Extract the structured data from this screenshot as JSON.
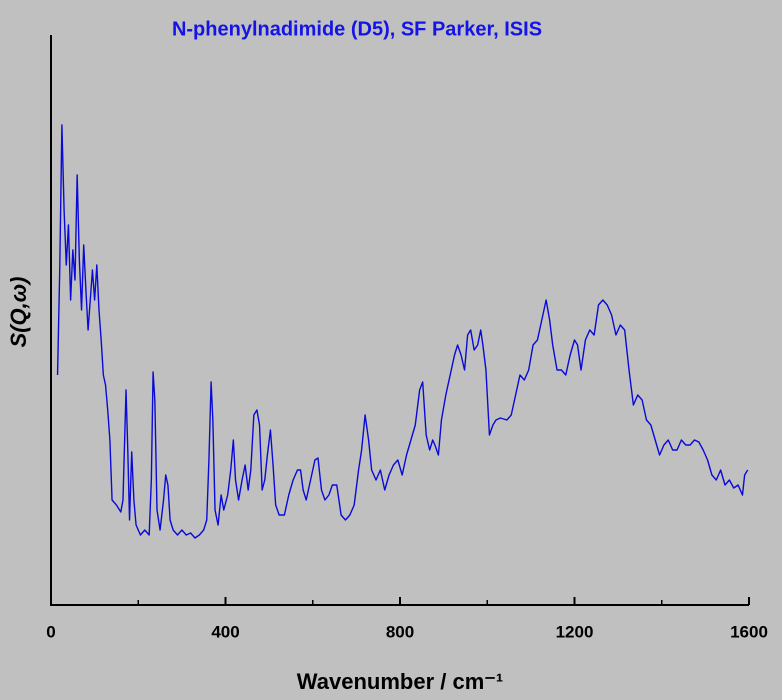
{
  "chart_data": {
    "type": "line",
    "title": "N-phenylnadimide (D5), SF Parker, ISIS",
    "x_label": "Wavenumber / cm⁻¹",
    "y_label": "S(Q,ω)",
    "xlim": [
      0,
      1600
    ],
    "xticks": [
      0,
      400,
      800,
      1200,
      1600
    ],
    "xminorticks": [
      200,
      600,
      1000,
      1400
    ],
    "ylim": [
      0,
      570
    ],
    "series": [
      {
        "color": "#0a0ad8",
        "x": [
          15,
          20,
          25,
          30,
          35,
          40,
          45,
          50,
          55,
          60,
          65,
          70,
          75,
          80,
          85,
          90,
          95,
          100,
          105,
          110,
          115,
          120,
          125,
          130,
          135,
          140,
          150,
          160,
          165,
          172,
          176,
          180,
          185,
          190,
          195,
          205,
          215,
          225,
          230,
          234,
          238,
          243,
          250,
          258,
          263,
          268,
          273,
          280,
          290,
          300,
          310,
          320,
          330,
          340,
          350,
          357,
          362,
          367,
          371,
          376,
          383,
          390,
          396,
          405,
          412,
          418,
          423,
          430,
          438,
          445,
          452,
          458,
          465,
          472,
          478,
          484,
          490,
          496,
          503,
          509,
          515,
          523,
          535,
          545,
          555,
          565,
          572,
          578,
          585,
          595,
          605,
          612,
          620,
          628,
          637,
          645,
          655,
          665,
          675,
          685,
          695,
          705,
          712,
          720,
          728,
          735,
          745,
          755,
          765,
          775,
          785,
          795,
          805,
          815,
          825,
          835,
          845,
          852,
          860,
          868,
          875,
          880,
          888,
          895,
          905,
          915,
          925,
          932,
          940,
          948,
          955,
          962,
          970,
          978,
          985,
          990,
          997,
          1005,
          1013,
          1020,
          1030,
          1045,
          1055,
          1065,
          1075,
          1085,
          1095,
          1105,
          1115,
          1125,
          1135,
          1143,
          1150,
          1160,
          1170,
          1180,
          1190,
          1200,
          1207,
          1215,
          1225,
          1235,
          1245,
          1255,
          1265,
          1275,
          1285,
          1295,
          1305,
          1315,
          1325,
          1335,
          1345,
          1355,
          1365,
          1375,
          1385,
          1395,
          1405,
          1415,
          1425,
          1435,
          1445,
          1455,
          1465,
          1475,
          1485,
          1495,
          1505,
          1515,
          1525,
          1535,
          1545,
          1555,
          1565,
          1575,
          1585,
          1590,
          1597
        ],
        "values": [
          230,
          335,
          480,
          395,
          340,
          380,
          305,
          355,
          325,
          430,
          345,
          295,
          360,
          315,
          275,
          305,
          335,
          305,
          340,
          295,
          265,
          230,
          220,
          195,
          165,
          105,
          100,
          93,
          105,
          215,
          155,
          85,
          153,
          105,
          80,
          70,
          75,
          70,
          125,
          233,
          205,
          95,
          75,
          105,
          130,
          120,
          85,
          75,
          70,
          75,
          70,
          72,
          67,
          70,
          75,
          85,
          145,
          223,
          185,
          95,
          80,
          110,
          95,
          110,
          135,
          165,
          125,
          105,
          125,
          140,
          115,
          135,
          190,
          195,
          180,
          115,
          125,
          150,
          175,
          140,
          100,
          90,
          90,
          110,
          125,
          135,
          135,
          115,
          105,
          125,
          145,
          147,
          115,
          105,
          110,
          120,
          120,
          90,
          85,
          90,
          100,
          135,
          155,
          190,
          165,
          135,
          125,
          135,
          115,
          130,
          140,
          145,
          130,
          150,
          165,
          180,
          215,
          223,
          170,
          155,
          165,
          160,
          150,
          185,
          210,
          230,
          250,
          260,
          250,
          235,
          270,
          275,
          255,
          260,
          275,
          260,
          235,
          170,
          180,
          185,
          187,
          185,
          190,
          210,
          230,
          225,
          235,
          260,
          265,
          285,
          305,
          285,
          260,
          235,
          235,
          230,
          250,
          265,
          260,
          235,
          265,
          275,
          270,
          300,
          305,
          300,
          290,
          270,
          280,
          275,
          235,
          200,
          210,
          205,
          185,
          180,
          165,
          150,
          160,
          165,
          155,
          155,
          165,
          160,
          160,
          165,
          163,
          155,
          145,
          130,
          125,
          135,
          120,
          125,
          117,
          120,
          110,
          130,
          135
        ]
      }
    ]
  }
}
